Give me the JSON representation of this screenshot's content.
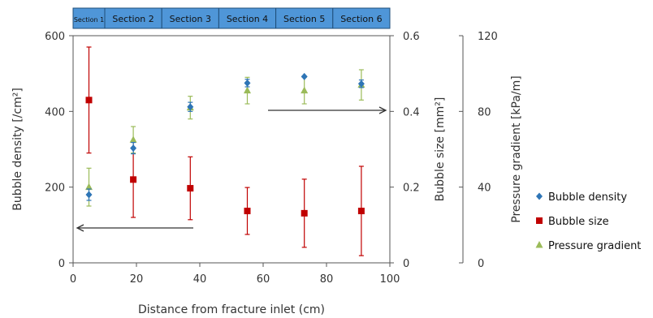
{
  "chart_data": {
    "type": "scatter",
    "xlabel": "Distance from fracture inlet (cm)",
    "ylabel_left": "Bubble density [/cm²]",
    "ylabel_mid": "Bubble size [mm²]",
    "ylabel_right": "Pressure gradient [kPa/m]",
    "x_range": [
      0,
      100
    ],
    "x_ticks": [
      "0",
      "20",
      "40",
      "60",
      "80",
      "100"
    ],
    "y_left_range": [
      0,
      600
    ],
    "y_left_ticks": [
      "0",
      "200",
      "400",
      "600"
    ],
    "y_mid_range": [
      0,
      0.6
    ],
    "y_mid_ticks": [
      "0",
      "0.2",
      "0.4",
      "0.6"
    ],
    "y_right_range": [
      0,
      120
    ],
    "y_right_ticks": [
      "0",
      "40",
      "80",
      "120"
    ],
    "sections": [
      "Section 1",
      "Section 2",
      "Section 3",
      "Section 4",
      "Section 5",
      "Section 6"
    ],
    "section_bounds": [
      0,
      10,
      28,
      46,
      64,
      82,
      100
    ],
    "series": [
      {
        "name": "Bubble density",
        "axis": "left",
        "color": "#2e75b6",
        "marker": "diamond",
        "x": [
          5,
          19,
          37,
          55,
          73,
          91
        ],
        "y": [
          180,
          303,
          412,
          475,
          492,
          473
        ],
        "err": [
          15,
          15,
          12,
          10,
          0,
          10
        ]
      },
      {
        "name": "Bubble size",
        "axis": "mid",
        "color": "#c00000",
        "marker": "square",
        "x": [
          5,
          19,
          37,
          55,
          73,
          91
        ],
        "y": [
          0.43,
          0.22,
          0.197,
          0.137,
          0.131,
          0.137
        ],
        "err": [
          0.14,
          0.1,
          0.083,
          0.062,
          0.09,
          0.118
        ]
      },
      {
        "name": "Pressure gradient",
        "axis": "right",
        "color": "#9bbb59",
        "marker": "triangle",
        "x": [
          5,
          19,
          37,
          55,
          73,
          91
        ],
        "y": [
          40,
          65,
          82,
          91,
          91,
          94
        ],
        "err": [
          10,
          7,
          6,
          7,
          7,
          8
        ]
      }
    ]
  }
}
